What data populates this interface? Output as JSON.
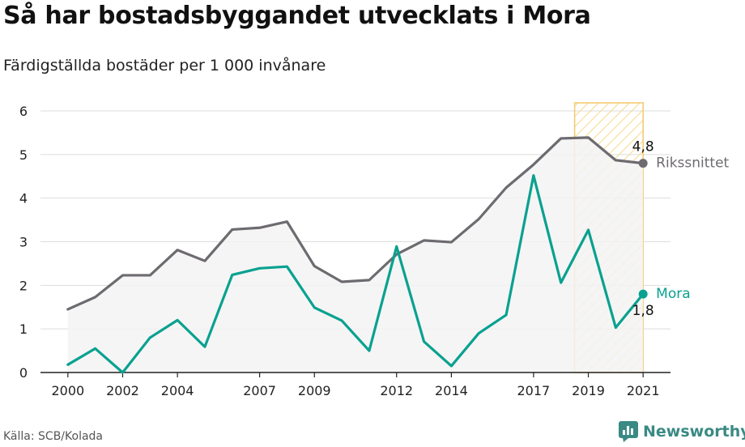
{
  "title": "Så har bostadsbyggandet utvecklats i Mora",
  "subtitle": "Färdigställda bostäder per 1 000 invånare",
  "source": "Källa: SCB/Kolada",
  "brand": {
    "name": "Newsworthy",
    "icon": "newsworthy-logo-icon"
  },
  "colors": {
    "national": "#6e6b70",
    "local": "#0aa190",
    "fill": "#f3f3f3",
    "highlight_stroke": "#f3c96a",
    "highlight_hatch": "#f7d98e",
    "grid": "#dddddd",
    "axis": "#222222"
  },
  "chart_data": {
    "type": "line",
    "x": [
      2000,
      2001,
      2002,
      2003,
      2004,
      2005,
      2006,
      2007,
      2008,
      2009,
      2010,
      2011,
      2012,
      2013,
      2014,
      2015,
      2016,
      2017,
      2018,
      2019,
      2020,
      2021
    ],
    "xticks": [
      "2000",
      "2002",
      "2004",
      "2007",
      "2009",
      "2012",
      "2014",
      "2017",
      "2019",
      "2021"
    ],
    "yticks": [
      "0",
      "1",
      "2",
      "3",
      "4",
      "5",
      "6"
    ],
    "ylim": [
      0,
      6
    ],
    "xlim": [
      1999,
      2022
    ],
    "series": [
      {
        "name": "Rikssnittet",
        "role": "national",
        "values": [
          1.45,
          1.73,
          2.23,
          2.23,
          2.81,
          2.56,
          3.28,
          3.32,
          3.46,
          2.44,
          2.08,
          2.12,
          2.71,
          3.03,
          2.99,
          3.52,
          4.24,
          4.77,
          5.37,
          5.39,
          4.87,
          4.8
        ],
        "end_label": "4,8"
      },
      {
        "name": "Mora",
        "role": "local",
        "values": [
          0.18,
          0.55,
          0.0,
          0.8,
          1.2,
          0.59,
          2.24,
          2.39,
          2.43,
          1.49,
          1.19,
          0.5,
          2.89,
          0.71,
          0.15,
          0.9,
          1.32,
          4.52,
          2.06,
          3.27,
          1.03,
          1.8
        ],
        "end_label": "1,8"
      }
    ],
    "highlight_range": [
      2019,
      2021
    ],
    "grid": true,
    "legend": "direct labels at line ends"
  }
}
